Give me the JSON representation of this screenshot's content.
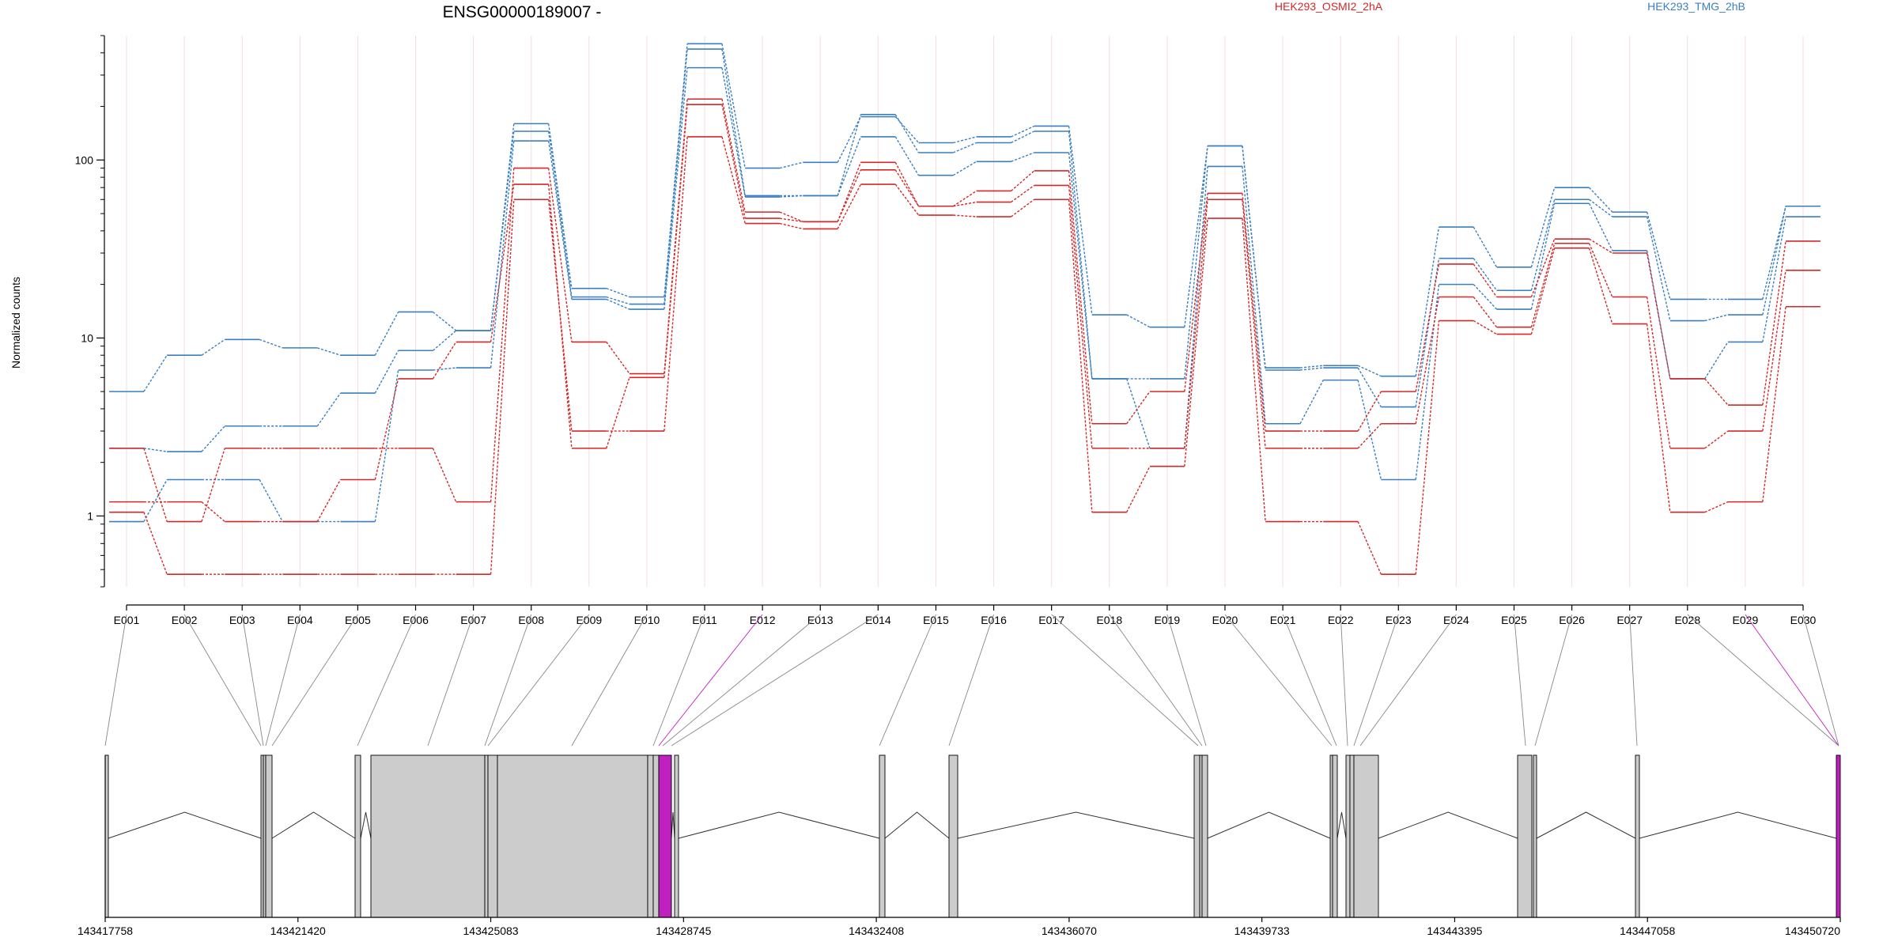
{
  "title": "ENSG00000189007 -",
  "legend": [
    {
      "name": "HEK293_OSMI2_2hA",
      "color": "#d62728"
    },
    {
      "name": "HEK293_TMG_2hB",
      "color": "#3a7fc1"
    }
  ],
  "chart_data": {
    "type": "line",
    "scale": "log",
    "ylabel": "Normalized counts",
    "ylim": [
      0.4,
      500
    ],
    "yticks": [
      {
        "value": 1,
        "label": "1"
      },
      {
        "value": 10,
        "label": "10"
      },
      {
        "value": 100,
        "label": "100"
      }
    ],
    "categories": [
      "E001",
      "E002",
      "E003",
      "E004",
      "E005",
      "E006",
      "E007",
      "E008",
      "E009",
      "E010",
      "E011",
      "E012",
      "E013",
      "E014",
      "E015",
      "E016",
      "E017",
      "E018",
      "E019",
      "E020",
      "E021",
      "E022",
      "E023",
      "E024",
      "E025",
      "E026",
      "E027",
      "E028",
      "E029",
      "E030"
    ],
    "series": [
      {
        "group": "HEK293_TMG_2hB",
        "values": [
          5,
          8,
          9.8,
          8.8,
          8,
          14,
          11,
          160,
          19,
          17,
          450,
          90,
          97,
          175,
          125,
          135,
          155,
          13.5,
          11.5,
          120,
          6.8,
          7,
          6.1,
          42,
          25,
          70,
          51,
          16.5,
          16.5,
          55
        ]
      },
      {
        "group": "HEK293_TMG_2hB",
        "values": [
          2.4,
          2.3,
          3.2,
          3.2,
          4.9,
          8.5,
          11,
          145,
          17,
          15.5,
          420,
          63,
          63,
          180,
          110,
          125,
          145,
          5.9,
          5.9,
          120,
          6.6,
          6.8,
          4.1,
          28,
          18.5,
          60,
          48,
          12.5,
          13.5,
          55
        ]
      },
      {
        "group": "HEK293_TMG_2hB",
        "values": [
          0.93,
          1.6,
          1.6,
          0.93,
          0.93,
          6.6,
          6.8,
          128,
          16.5,
          14.5,
          330,
          62,
          63,
          135,
          82,
          98,
          110,
          5.9,
          2.4,
          92,
          3.3,
          5.8,
          1.6,
          20,
          14.5,
          57,
          31,
          5.9,
          9.5,
          48
        ]
      },
      {
        "group": "HEK293_OSMI2_2hA",
        "values": [
          2.4,
          0.93,
          2.4,
          2.4,
          2.4,
          2.4,
          1.2,
          90,
          9.5,
          6.3,
          220,
          51,
          45,
          97,
          55,
          67,
          87,
          3.3,
          5,
          65,
          3,
          3,
          5,
          26,
          17,
          36,
          30,
          5.9,
          4.2,
          35
        ]
      },
      {
        "group": "HEK293_OSMI2_2hA",
        "values": [
          1.2,
          1.2,
          0.93,
          0.93,
          1.6,
          5.9,
          9.5,
          73,
          2.4,
          6,
          205,
          47,
          45,
          88,
          55,
          58,
          72,
          2.4,
          2.4,
          60,
          2.4,
          2.4,
          3.3,
          17,
          11.5,
          34,
          17,
          2.4,
          3,
          24
        ]
      },
      {
        "group": "HEK293_OSMI2_2hA",
        "values": [
          1.05,
          0.47,
          0.47,
          0.47,
          0.47,
          0.47,
          0.47,
          60,
          3,
          3,
          135,
          44,
          41,
          73,
          49,
          48,
          60,
          1.05,
          1.9,
          47,
          0.93,
          0.93,
          0.47,
          12.5,
          10.5,
          32,
          12,
          1.05,
          1.2,
          15
        ]
      }
    ]
  },
  "gene_model": {
    "coord_ticks": [
      "143417758",
      "143421420",
      "143425083",
      "143428745",
      "143432408",
      "143436070",
      "143439733",
      "143443395",
      "143447058",
      "143450720"
    ],
    "genome_start": 143417758,
    "genome_end": 143450720,
    "exon_color": "#cccccc",
    "highlight_color": "#c020c0",
    "highlight_exons": [
      "E012",
      "E029"
    ]
  }
}
